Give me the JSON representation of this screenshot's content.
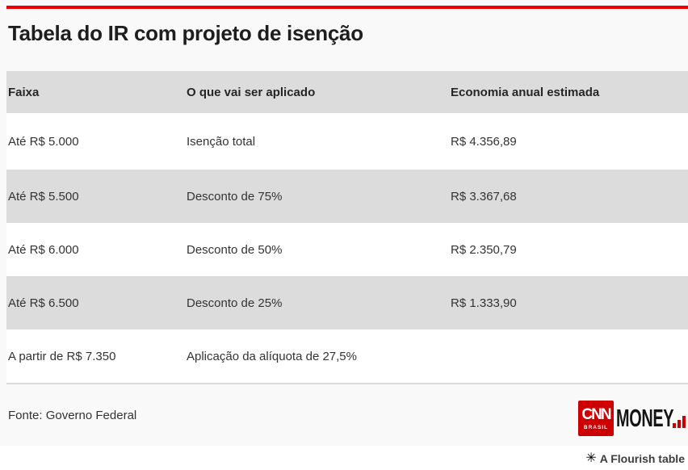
{
  "title": "Tabela do IR com projeto de isenção",
  "chart_data": {
    "type": "table",
    "title": "Tabela do IR com projeto de isenção",
    "columns": [
      "Faixa",
      "O que vai ser aplicado",
      "Economia anual estimada"
    ],
    "rows": [
      [
        "Até R$ 5.000",
        "Isenção total",
        "R$ 4.356,89"
      ],
      [
        "Até R$ 5.500",
        "Desconto de 75%",
        "R$ 3.367,68"
      ],
      [
        "Até R$ 6.000",
        "Desconto de 50%",
        "R$ 2.350,79"
      ],
      [
        "Até R$ 6.500",
        "Desconto de 25%",
        "R$ 1.333,90"
      ],
      [
        "A partir de R$ 7.350",
        "Aplicação da alíquota de 27,5%",
        ""
      ]
    ],
    "source": "Fonte: Governo Federal",
    "layout_hints": {
      "striped_rows": [
        1,
        3
      ],
      "header_background": "#dcdcdc",
      "stripe_background": "#dcdcdc"
    }
  },
  "footer": {
    "source_label": "Fonte: Governo Federal",
    "logo": {
      "cnn": "CNN",
      "brasil": "BRASIL",
      "money": "MONEY"
    }
  },
  "attribution": {
    "icon": "✳",
    "label": "A Flourish table"
  },
  "colors": {
    "top_bar": "#ed0000",
    "cnn_red": "#cc0000",
    "table_gray": "#dcdcdc",
    "card_background": "#f9f9f9",
    "title_text": "#1e1e1e",
    "body_text": "#333333"
  }
}
